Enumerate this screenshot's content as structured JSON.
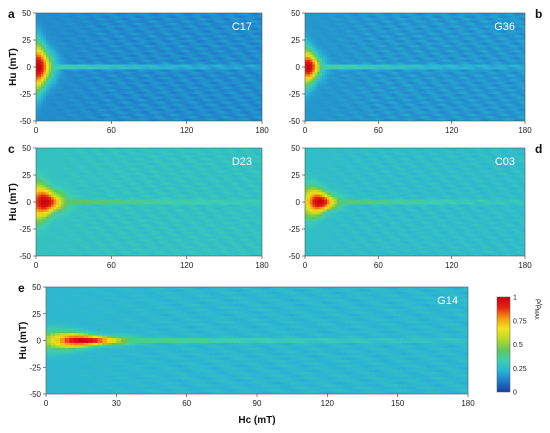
{
  "chart_data": {
    "type": "heatmap",
    "colorbar": {
      "title_rho": "ρ/ρ",
      "title_sub": "MAX",
      "ticks": [
        {
          "value": 0,
          "label": "0"
        },
        {
          "value": 0.25,
          "label": "0.25"
        },
        {
          "value": 0.5,
          "label": "0.5"
        },
        {
          "value": 0.75,
          "label": "0.75"
        },
        {
          "value": 1,
          "label": "1"
        }
      ],
      "colors": [
        "#1b3fa0",
        "#1e78c8",
        "#2ab4d4",
        "#3ccfb0",
        "#63c55a",
        "#b7da2c",
        "#f2e418",
        "#f39a14",
        "#e52412",
        "#c8000f"
      ]
    },
    "panels": [
      {
        "letter": "a",
        "letter_side": "left",
        "sample": "C17",
        "xlim": [
          0,
          180
        ],
        "ylim": [
          -50,
          50
        ],
        "xticks": [
          "0",
          "60",
          "120",
          "180"
        ],
        "yticks": [
          "50",
          "25",
          "0",
          "-25",
          "-50"
        ],
        "ylabel": "Hu (mT)",
        "xlabel": "",
        "peak_hc": 2,
        "spread_hc": 10,
        "spread_hu": 14,
        "bg": 0.15
      },
      {
        "letter": "b",
        "letter_side": "right",
        "sample": "G36",
        "xlim": [
          0,
          180
        ],
        "ylim": [
          -50,
          50
        ],
        "xticks": [
          "0",
          "60",
          "120",
          "180"
        ],
        "yticks": [
          "50",
          "25",
          "0",
          "-25",
          "-50"
        ],
        "ylabel": "",
        "xlabel": "",
        "peak_hc": 3,
        "spread_hc": 9,
        "spread_hu": 10,
        "bg": 0.17
      },
      {
        "letter": "c",
        "letter_side": "left",
        "sample": "D23",
        "xlim": [
          0,
          180
        ],
        "ylim": [
          -50,
          50
        ],
        "xticks": [
          "0",
          "60",
          "120",
          "180"
        ],
        "yticks": [
          "50",
          "25",
          "0",
          "-25",
          "-50"
        ],
        "ylabel": "Hu (mT)",
        "xlabel": "",
        "peak_hc": 7,
        "spread_hc": 14,
        "spread_hu": 9,
        "bg": 0.28
      },
      {
        "letter": "d",
        "letter_side": "right",
        "sample": "C03",
        "xlim": [
          0,
          180
        ],
        "ylim": [
          -50,
          50
        ],
        "xticks": [
          "0",
          "60",
          "120",
          "180"
        ],
        "yticks": [
          "50",
          "25",
          "0",
          "-25",
          "-50"
        ],
        "ylabel": "",
        "xlabel": "",
        "peak_hc": 12,
        "spread_hc": 13,
        "spread_hu": 7,
        "bg": 0.26
      },
      {
        "letter": "e",
        "letter_side": "left",
        "sample": "G14",
        "xlim": [
          0,
          180
        ],
        "ylim": [
          -50,
          50
        ],
        "xticks": [
          "0",
          "30",
          "60",
          "90",
          "120",
          "150",
          "180"
        ],
        "yticks": [
          "50",
          "25",
          "0",
          "-25",
          "-50"
        ],
        "ylabel": "Hu (mT)",
        "xlabel": "Hc (mT)",
        "peak_hc": 16,
        "spread_hc": 16,
        "spread_hu": 4,
        "bg": 0.24
      }
    ]
  }
}
